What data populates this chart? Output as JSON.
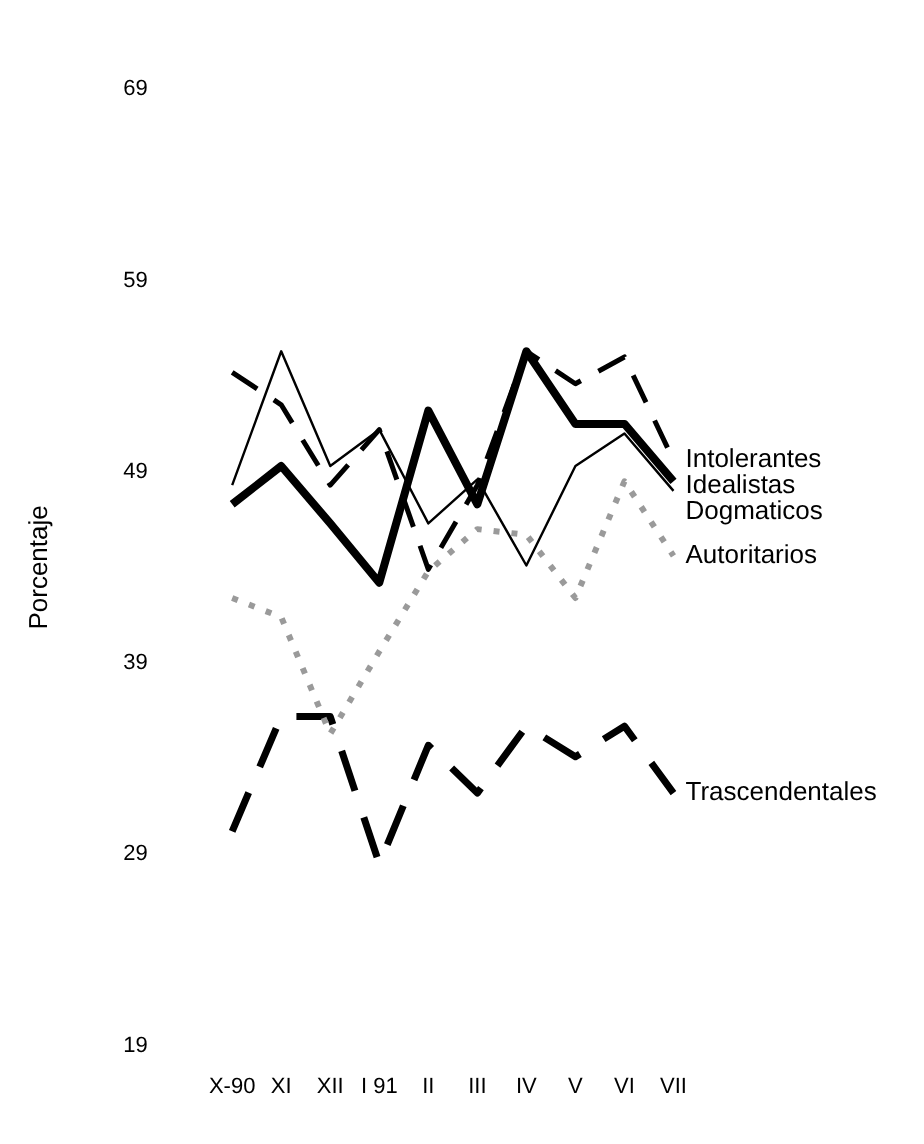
{
  "chart_data": {
    "type": "line",
    "ylabel": "Porcentaje",
    "categories": [
      "X-90",
      "XI",
      "XII",
      "I 91",
      "II",
      "III",
      "IV",
      "V",
      "VI",
      "VII"
    ],
    "ylim": [
      19,
      69
    ],
    "yticks": [
      19,
      29,
      39,
      49,
      59,
      69
    ],
    "grid": false,
    "legend": false,
    "marker": "none",
    "series": [
      {
        "name": "Intolerantes",
        "color": "#000000",
        "line_style": "dashed",
        "values": [
          54.2,
          52.5,
          48.3,
          51.2,
          43.9,
          48.3,
          55.3,
          53.6,
          55,
          49.6
        ]
      },
      {
        "name": "Idealistas",
        "color": "#000000",
        "line_style": "solid",
        "values": [
          47.3,
          49.3,
          46.3,
          43.2,
          52.2,
          47.3,
          55.3,
          51.5,
          51.5,
          48.5
        ]
      },
      {
        "name": "Dogmaticos",
        "color": "#000000",
        "line_style": "solid",
        "values": [
          48.3,
          55.3,
          49.3,
          51.2,
          46.3,
          48.6,
          44.1,
          49.3,
          51,
          48
        ]
      },
      {
        "name": "Autoritarios",
        "color": "#9a9a9a",
        "line_style": "dotted",
        "values": [
          42.4,
          41.4,
          35.3,
          39.6,
          43.8,
          46,
          45.7,
          42.4,
          48.5,
          44.6
        ]
      },
      {
        "name": "Trascendentales",
        "color": "#000000",
        "line_style": "dashed",
        "values": [
          30.2,
          36.2,
          36.2,
          28.5,
          34.7,
          32.2,
          35.7,
          34.1,
          35.7,
          32.2
        ]
      }
    ]
  }
}
